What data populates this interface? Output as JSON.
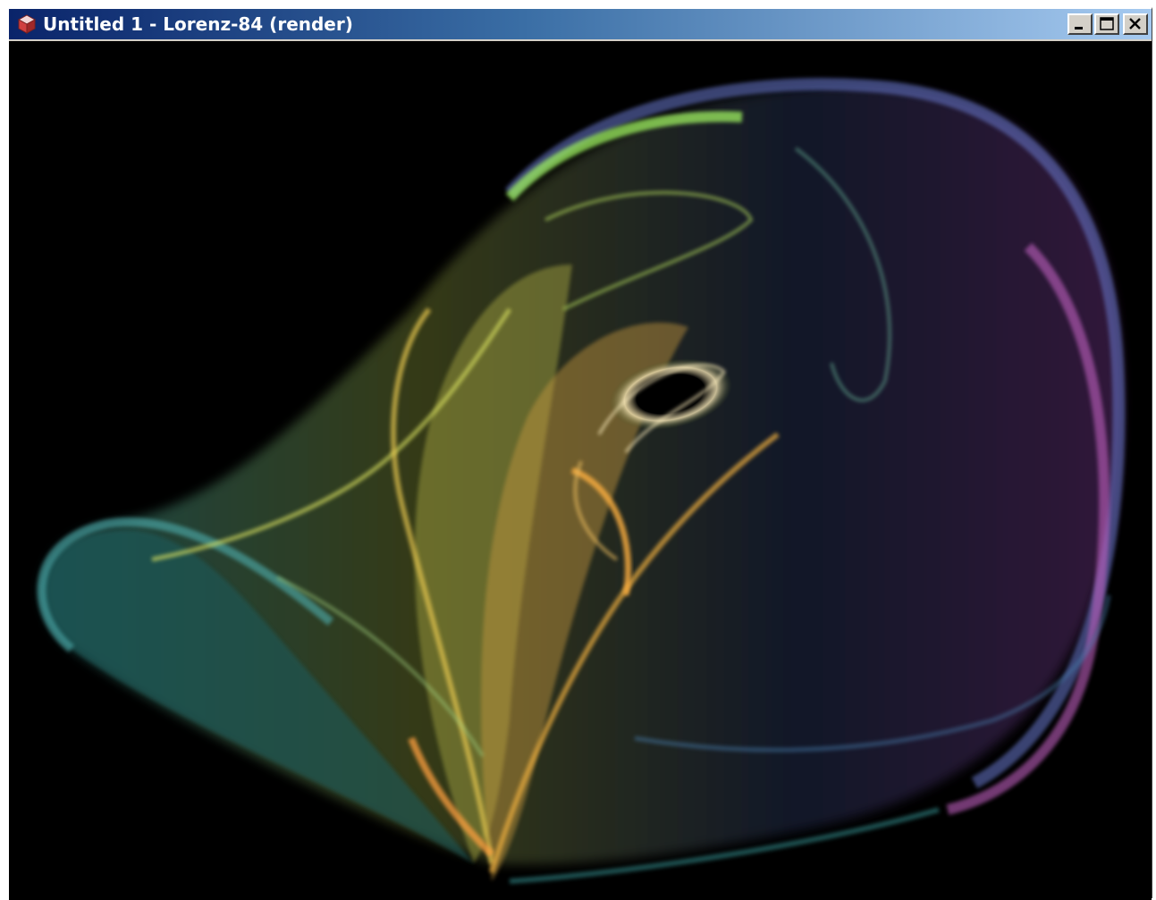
{
  "window": {
    "title": "Untitled 1 - Lorenz-84 (render)",
    "icon": "app-cube-icon",
    "controls": {
      "minimize_icon": "minimize-icon",
      "maximize_icon": "maximize-icon",
      "close_icon": "close-icon"
    }
  },
  "render": {
    "background": "#000000",
    "palette": [
      "#3fa0a0",
      "#9be04a",
      "#e0c040",
      "#f0a030",
      "#3a4aa0",
      "#b04ab0"
    ]
  },
  "colors": {
    "titlebar_start": "#0a246a",
    "titlebar_end": "#a6caf0",
    "chrome": "#d4d0c8"
  }
}
